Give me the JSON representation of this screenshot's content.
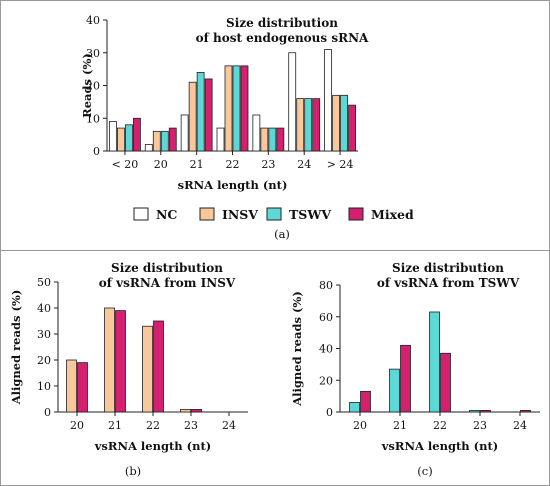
{
  "colors": {
    "NC": "#ffffff",
    "INSV": "#f8c89a",
    "TSWV": "#5ed8d6",
    "Mixed": "#d3206f",
    "stroke": "#222222"
  },
  "panel_labels": [
    "(a)",
    "(b)",
    "(c)"
  ],
  "legend": [
    "NC",
    "INSV",
    "TSWV",
    "Mixed"
  ],
  "chart_data": [
    {
      "type": "bar",
      "title": [
        "Size distribution",
        "of host endogenous sRNA"
      ],
      "xlabel": "sRNA length (nt)",
      "ylabel": "Reads (%)",
      "ylim": [
        0,
        40
      ],
      "yticks": [
        0,
        10,
        20,
        30,
        40
      ],
      "categories": [
        "< 20",
        "20",
        "21",
        "22",
        "23",
        "24",
        "> 24"
      ],
      "series": [
        {
          "name": "NC",
          "values": [
            9,
            2,
            11,
            7,
            11,
            30,
            31
          ]
        },
        {
          "name": "INSV",
          "values": [
            7,
            6,
            21,
            26,
            7,
            16,
            17
          ]
        },
        {
          "name": "TSWV",
          "values": [
            8,
            6,
            24,
            26,
            7,
            16,
            17
          ]
        },
        {
          "name": "Mixed",
          "values": [
            10,
            7,
            22,
            26,
            7,
            16,
            14
          ]
        }
      ]
    },
    {
      "type": "bar",
      "title": [
        "Size distribution",
        "of vsRNA from INSV"
      ],
      "xlabel": "vsRNA length (nt)",
      "ylabel": "Aligned reads (%)",
      "ylim": [
        0,
        50
      ],
      "yticks": [
        0,
        10,
        20,
        30,
        40,
        50
      ],
      "categories": [
        "20",
        "21",
        "22",
        "23",
        "24"
      ],
      "series": [
        {
          "name": "INSV",
          "values": [
            20,
            40,
            33,
            1,
            0
          ]
        },
        {
          "name": "Mixed",
          "values": [
            19,
            39,
            35,
            1,
            0
          ]
        }
      ]
    },
    {
      "type": "bar",
      "title": [
        "Size distribution",
        "of vsRNA from TSWV"
      ],
      "xlabel": "vsRNA length (nt)",
      "ylabel": "Aligned reads (%)",
      "ylim": [
        0,
        80
      ],
      "yticks": [
        0,
        20,
        40,
        60,
        80
      ],
      "categories": [
        "20",
        "21",
        "22",
        "23",
        "24"
      ],
      "series": [
        {
          "name": "TSWV",
          "values": [
            6,
            27,
            63,
            1,
            0
          ]
        },
        {
          "name": "Mixed",
          "values": [
            13,
            42,
            37,
            1,
            1
          ]
        }
      ]
    }
  ]
}
